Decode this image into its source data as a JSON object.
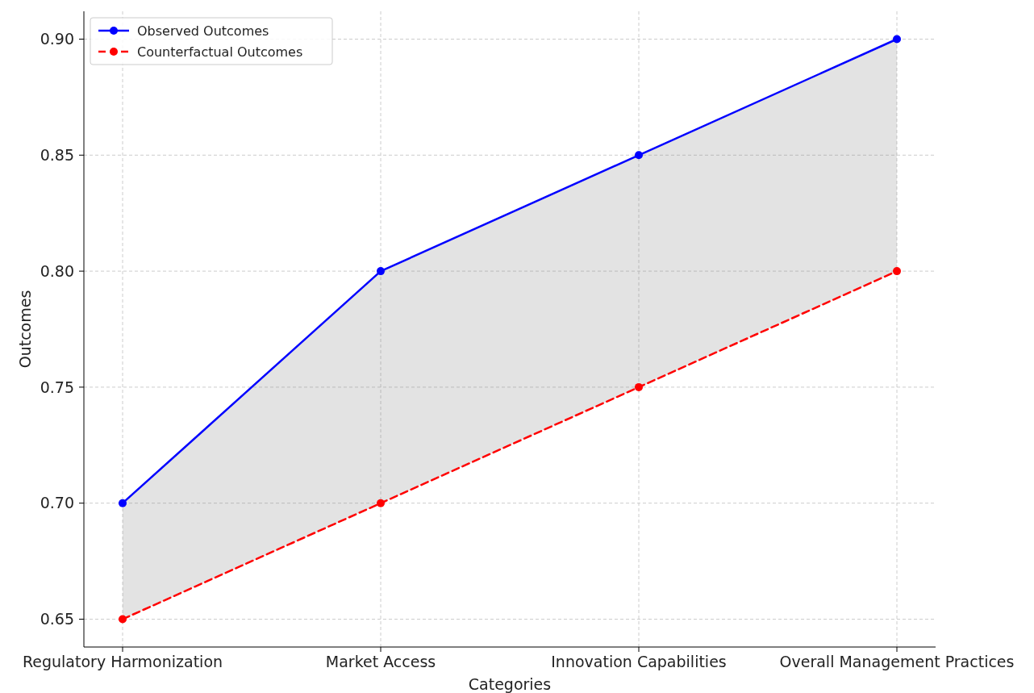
{
  "chart_data": {
    "type": "line",
    "xlabel": "Categories",
    "ylabel": "Outcomes",
    "categories": [
      "Regulatory Harmonization",
      "Market Access",
      "Innovation Capabilities",
      "Overall Management Practices"
    ],
    "series": [
      {
        "name": "Observed Outcomes",
        "color": "#0000ff",
        "values": [
          0.7,
          0.8,
          0.85,
          0.9
        ],
        "line_style": "solid",
        "lower": [
          0.65,
          0.7,
          0.75,
          0.8
        ],
        "upper": [
          0.7,
          0.8,
          0.85,
          0.9
        ]
      },
      {
        "name": "Counterfactual Outcomes",
        "color": "#ff0000",
        "values": [
          0.65,
          0.7,
          0.75,
          0.8
        ],
        "line_style": "dashed"
      }
    ],
    "ylim": [
      0.638,
      0.912
    ],
    "yticks": [
      {
        "value": 0.65,
        "label": "0.65"
      },
      {
        "value": 0.7,
        "label": "0.70"
      },
      {
        "value": 0.75,
        "label": "0.75"
      },
      {
        "value": 0.8,
        "label": "0.80"
      },
      {
        "value": 0.85,
        "label": "0.85"
      },
      {
        "value": 0.9,
        "label": "0.90"
      }
    ],
    "grid": true,
    "legend": "top left",
    "marker": "circle"
  }
}
